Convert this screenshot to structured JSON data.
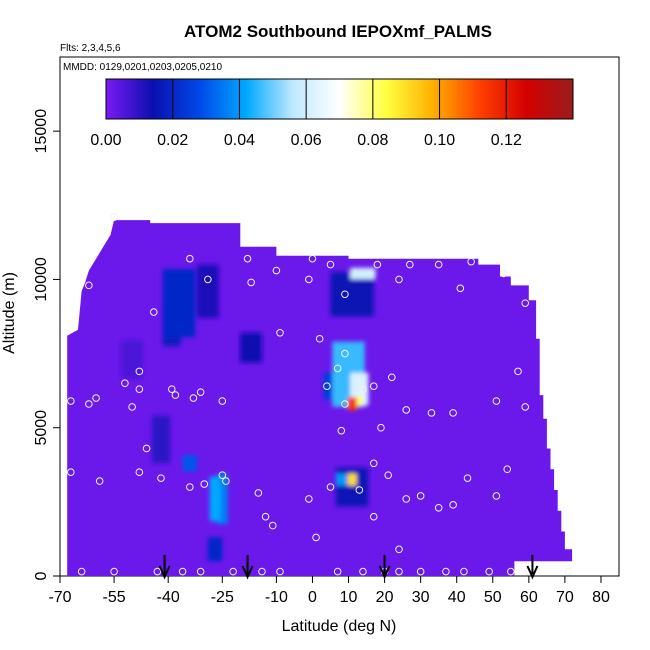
{
  "chart_data": {
    "type": "heatmap",
    "title": "ATOM2 Southbound IEPOXmf_PALMS",
    "annotations": [
      "Flts: 2,3,4,5,6",
      "MMDD: 0129,0201,0203,0205,0210"
    ],
    "xlabel": "Latitude (deg N)",
    "ylabel": "Altitude (m)",
    "xlim": [
      -70,
      85
    ],
    "ylim": [
      0,
      17500
    ],
    "x_ticks": [
      -70,
      -55,
      -40,
      -25,
      -10,
      0,
      10,
      20,
      30,
      40,
      50,
      60,
      70,
      80
    ],
    "x_tick_labels": [
      "-70",
      "-55",
      "-40",
      "-25",
      "-10",
      "0",
      "10",
      "20",
      "30",
      "40",
      "50",
      "60",
      "70",
      "80"
    ],
    "y_ticks": [
      0,
      5000,
      10000,
      15000
    ],
    "y_tick_labels": [
      "0",
      "5000",
      "10000",
      "15000"
    ],
    "colorbar": {
      "range": [
        0,
        0.14
      ],
      "ticks": [
        0.0,
        0.02,
        0.04,
        0.06,
        0.08,
        0.1,
        0.12
      ],
      "tick_labels": [
        "0.00",
        "0.02",
        "0.04",
        "0.06",
        "0.08",
        "0.10",
        "0.12"
      ],
      "colors": [
        "#7b1af5",
        "#0b0fb0",
        "#0048e8",
        "#00a8ff",
        "#bfe8ff",
        "#ffffff",
        "#ffff40",
        "#ffb000",
        "#ff4000",
        "#d40000",
        "#9a1d1d"
      ]
    },
    "background_value": 0.002,
    "domain": [
      [
        -68,
        0
      ],
      [
        -68,
        8100
      ],
      [
        -65,
        8300
      ],
      [
        -64,
        9600
      ],
      [
        -63,
        9900
      ],
      [
        -62,
        10300
      ],
      [
        -60,
        10700
      ],
      [
        -58,
        11100
      ],
      [
        -56,
        11500
      ],
      [
        -55,
        12000
      ],
      [
        -45,
        12000
      ],
      [
        -45,
        11900
      ],
      [
        -20,
        11900
      ],
      [
        -20,
        11100
      ],
      [
        -10,
        11100
      ],
      [
        -10,
        10800
      ],
      [
        10,
        10800
      ],
      [
        10,
        10700
      ],
      [
        46,
        10700
      ],
      [
        46,
        10500
      ],
      [
        52,
        10500
      ],
      [
        52,
        10100
      ],
      [
        55,
        10100
      ],
      [
        55,
        9800
      ],
      [
        60,
        9800
      ],
      [
        60,
        9300
      ],
      [
        62,
        9300
      ],
      [
        62,
        8000
      ],
      [
        63,
        8000
      ],
      [
        63,
        6100
      ],
      [
        64,
        6100
      ],
      [
        64,
        5300
      ],
      [
        65,
        5300
      ],
      [
        65,
        4300
      ],
      [
        66,
        4300
      ],
      [
        66,
        3600
      ],
      [
        67,
        3600
      ],
      [
        67,
        2900
      ],
      [
        68,
        2900
      ],
      [
        68,
        2200
      ],
      [
        69,
        2200
      ],
      [
        69,
        1500
      ],
      [
        70,
        1500
      ],
      [
        70,
        900
      ],
      [
        72,
        900
      ],
      [
        72,
        500
      ],
      [
        56,
        500
      ],
      [
        56,
        0
      ]
    ],
    "features": [
      {
        "lat": -37,
        "alt": 9200,
        "value": 0.02,
        "dlat": 9,
        "dalt": 2300
      },
      {
        "lat": -39,
        "alt": 8500,
        "value": 0.017,
        "dlat": 5,
        "dalt": 1500
      },
      {
        "lat": -29,
        "alt": 9600,
        "value": 0.012,
        "dlat": 6,
        "dalt": 1800
      },
      {
        "lat": -17,
        "alt": 7700,
        "value": 0.014,
        "dlat": 6,
        "dalt": 1000
      },
      {
        "lat": -50,
        "alt": 7300,
        "value": 0.006,
        "dlat": 6,
        "dalt": 1300
      },
      {
        "lat": -42,
        "alt": 4600,
        "value": 0.01,
        "dlat": 5,
        "dalt": 1600
      },
      {
        "lat": -27,
        "alt": 2600,
        "value": 0.042,
        "dlat": 3,
        "dalt": 1500
      },
      {
        "lat": -25,
        "alt": 2600,
        "value": 0.036,
        "dlat": 3,
        "dalt": 1700
      },
      {
        "lat": -34,
        "alt": 3800,
        "value": 0.03,
        "dlat": 4,
        "dalt": 550
      },
      {
        "lat": -27,
        "alt": 900,
        "value": 0.02,
        "dlat": 4,
        "dalt": 800
      },
      {
        "lat": 11,
        "alt": 9500,
        "value": 0.015,
        "dlat": 12,
        "dalt": 1500
      },
      {
        "lat": 10,
        "alt": 6800,
        "value": 0.046,
        "dlat": 9,
        "dalt": 2200
      },
      {
        "lat": 13,
        "alt": 6300,
        "value": 0.062,
        "dlat": 5,
        "dalt": 1100
      },
      {
        "lat": 14,
        "alt": 10200,
        "value": 0.06,
        "dlat": 7,
        "dalt": 380
      },
      {
        "lat": 11,
        "alt": 5800,
        "value": 0.115,
        "dlat": 2.5,
        "dalt": 450
      },
      {
        "lat": 13,
        "alt": 5900,
        "value": 0.08,
        "dlat": 1.5,
        "dalt": 400
      },
      {
        "lat": 11,
        "alt": 3250,
        "value": 0.09,
        "dlat": 2.5,
        "dalt": 400
      },
      {
        "lat": 8,
        "alt": 3250,
        "value": 0.04,
        "dlat": 3,
        "dalt": 400
      },
      {
        "lat": 11,
        "alt": 3000,
        "value": 0.015,
        "dlat": 9,
        "dalt": 1300
      },
      {
        "lat": 6,
        "alt": 6400,
        "value": 0.025,
        "dlat": 6,
        "dalt": 900
      }
    ],
    "points": [
      [
        -55,
        12100
      ],
      [
        -34,
        10700
      ],
      [
        -18,
        10700
      ],
      [
        -10,
        10300
      ],
      [
        0,
        10700
      ],
      [
        5,
        10500
      ],
      [
        18,
        10500
      ],
      [
        27,
        10500
      ],
      [
        35,
        10500
      ],
      [
        44,
        10600
      ],
      [
        53,
        10200
      ],
      [
        -62,
        9800
      ],
      [
        -44,
        8900
      ],
      [
        -29,
        10000
      ],
      [
        -17,
        9900
      ],
      [
        -1,
        10000
      ],
      [
        9,
        9500
      ],
      [
        24,
        10000
      ],
      [
        41,
        9700
      ],
      [
        59,
        9200
      ],
      [
        -9,
        8200
      ],
      [
        2,
        8000
      ],
      [
        9,
        7500
      ],
      [
        -48,
        6900
      ],
      [
        -52,
        6500
      ],
      [
        -48,
        6300
      ],
      [
        -38,
        6100
      ],
      [
        -39,
        6300
      ],
      [
        -33,
        6000
      ],
      [
        -31,
        6200
      ],
      [
        -25,
        5900
      ],
      [
        -60,
        6000
      ],
      [
        -67,
        5900
      ],
      [
        -50,
        5700
      ],
      [
        -62,
        5800
      ],
      [
        4,
        6400
      ],
      [
        7,
        7000
      ],
      [
        9,
        5800
      ],
      [
        14,
        6300
      ],
      [
        17,
        6400
      ],
      [
        22,
        6700
      ],
      [
        26,
        5600
      ],
      [
        33,
        5500
      ],
      [
        39,
        5500
      ],
      [
        51,
        5900
      ],
      [
        57,
        6900
      ],
      [
        59,
        5700
      ],
      [
        8,
        4900
      ],
      [
        19,
        5000
      ],
      [
        -46,
        4300
      ],
      [
        -48,
        3500
      ],
      [
        -42,
        3300
      ],
      [
        -34,
        3000
      ],
      [
        -30,
        3100
      ],
      [
        -25,
        3400
      ],
      [
        -24,
        3200
      ],
      [
        -15,
        2800
      ],
      [
        -1,
        2600
      ],
      [
        5,
        3000
      ],
      [
        13,
        2900
      ],
      [
        17,
        3800
      ],
      [
        21,
        3400
      ],
      [
        26,
        2600
      ],
      [
        30,
        2700
      ],
      [
        35,
        2300
      ],
      [
        39,
        2400
      ],
      [
        43,
        3300
      ],
      [
        51,
        2700
      ],
      [
        54,
        3600
      ],
      [
        -59,
        3200
      ],
      [
        -67,
        3500
      ],
      [
        -13,
        2000
      ],
      [
        -11,
        1700
      ],
      [
        1,
        1300
      ],
      [
        17,
        2000
      ],
      [
        24,
        900
      ],
      [
        -64,
        150
      ],
      [
        -55,
        150
      ],
      [
        -43,
        150
      ],
      [
        -36,
        150
      ],
      [
        -31,
        150
      ],
      [
        -22,
        150
      ],
      [
        -14,
        150
      ],
      [
        -9,
        150
      ],
      [
        7,
        150
      ],
      [
        14,
        150
      ],
      [
        20,
        150
      ],
      [
        24,
        150
      ],
      [
        30,
        150
      ],
      [
        37,
        150
      ],
      [
        42,
        150
      ],
      [
        49,
        150
      ],
      [
        55,
        150
      ],
      [
        60,
        150
      ],
      [
        71,
        150
      ]
    ],
    "arrows": [
      -41,
      -18,
      20,
      61
    ]
  }
}
